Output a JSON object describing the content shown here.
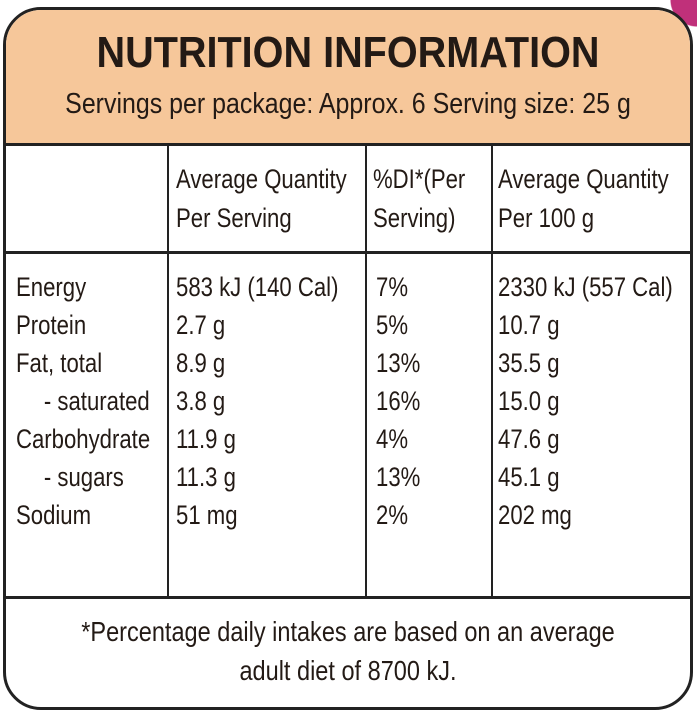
{
  "title": "NUTRITION INFORMATION",
  "servings_line": "Servings per package: Approx. 6  Serving size: 25 g",
  "columns": {
    "per_serving": [
      "Average Quantity",
      "Per Serving"
    ],
    "di": [
      "%DI*(Per",
      "Serving)"
    ],
    "per_100g": [
      "Average Quantity",
      "Per 100 g"
    ]
  },
  "rows": [
    {
      "label": "Energy",
      "per_serving": "583 kJ (140 Cal)",
      "di": "7%",
      "per_100g": "2330 kJ (557 Cal)"
    },
    {
      "label": "Protein",
      "per_serving": "2.7 g",
      "di": "5%",
      "per_100g": "10.7 g"
    },
    {
      "label": "Fat, total",
      "per_serving": "8.9 g",
      "di": "13%",
      "per_100g": "35.5 g"
    },
    {
      "label": "- saturated",
      "per_serving": "3.8 g",
      "di": "16%",
      "per_100g": "15.0 g"
    },
    {
      "label": "Carbohydrate",
      "per_serving": "11.9 g",
      "di": "4%",
      "per_100g": "47.6 g"
    },
    {
      "label": "- sugars",
      "per_serving": "11.3 g",
      "di": "13%",
      "per_100g": "45.1 g"
    },
    {
      "label": "Sodium",
      "per_serving": "51 mg",
      "di": "2%",
      "per_100g": "202 mg"
    }
  ],
  "footnote": [
    "*Percentage daily intakes are based on an average",
    "adult diet of 8700 kJ."
  ],
  "colors": {
    "header_bg": "#f6c79a",
    "border": "#222222",
    "text": "#231a15"
  }
}
